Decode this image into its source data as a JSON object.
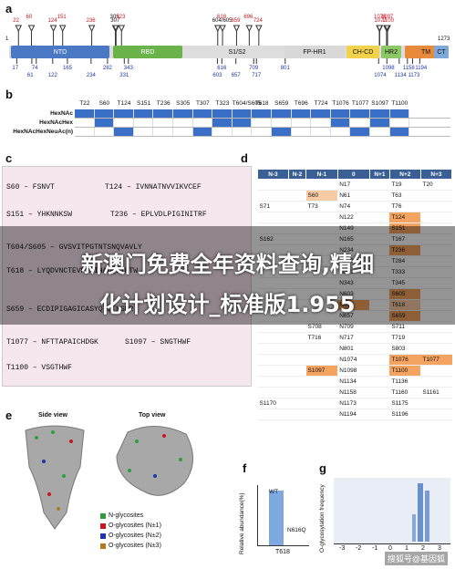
{
  "panels": {
    "a": "a",
    "b": "b",
    "c": "c",
    "d": "d",
    "e": "e",
    "f": "f",
    "g": "g"
  },
  "panel_a": {
    "domains": [
      {
        "name": "NTD",
        "color": "#4a78c4"
      },
      {
        "name": "RBD",
        "color": "#6ab24a"
      },
      {
        "name": "S1/S2",
        "color": "#ffffff"
      },
      {
        "name": "FP-HR1",
        "color": "#d8d8d8"
      },
      {
        "name": "CH-CD",
        "color": "#f2d24a"
      },
      {
        "name": "HR2",
        "color": "#8cc866"
      },
      {
        "name": "TM",
        "color": "#e88a3c"
      },
      {
        "name": "CT",
        "color": "#7da9d8"
      }
    ],
    "start_label": "1",
    "end_label": "1273",
    "top_sites": [
      "22",
      "60",
      "124",
      "151",
      "236",
      "305",
      "307",
      "323",
      "604/605",
      "618",
      "659",
      "696",
      "724",
      "1076",
      "1077",
      "1097",
      "1100"
    ],
    "bottom_sites": [
      "17",
      "61",
      "74",
      "122",
      "165",
      "234",
      "282",
      "331",
      "343",
      "603",
      "616",
      "657",
      "709",
      "717",
      "801",
      "1074",
      "1098",
      "1134",
      "1158",
      "1173",
      "1194"
    ]
  },
  "panel_b": {
    "columns": [
      "T22",
      "S60",
      "T124",
      "S151",
      "T236",
      "S305",
      "T307",
      "T323",
      "T604/S605",
      "T618",
      "S659",
      "T696",
      "T724",
      "T1076",
      "T1077",
      "S1097",
      "T1100"
    ],
    "rows": [
      {
        "label": "HexNAc",
        "cells": [
          1,
          1,
          1,
          1,
          1,
          1,
          1,
          1,
          1,
          1,
          1,
          1,
          1,
          1,
          1,
          1,
          1
        ]
      },
      {
        "label": "HexNAcHex",
        "cells": [
          0,
          1,
          0,
          0,
          0,
          0,
          0,
          1,
          1,
          0,
          0,
          0,
          0,
          1,
          0,
          1,
          0
        ]
      },
      {
        "label": "HexNAcHexNeuAc(n)",
        "cells": [
          0,
          0,
          1,
          0,
          0,
          0,
          1,
          0,
          0,
          0,
          1,
          0,
          0,
          0,
          1,
          0,
          1
        ]
      }
    ]
  },
  "panel_c": {
    "peptides": [
      {
        "text": "S60 – FSNVT"
      },
      {
        "text": "T124 – IVNNATNVVIKVCEF"
      },
      {
        "text": "S151 – YHKNNKSW"
      },
      {
        "text": "T236 – EPLVDLPIGINITRF"
      },
      {
        "text": "T604/S605 – GVSVITPGTNTSNQVAVLY"
      },
      {
        "text": "T618 – LYQDVNCTEVPVAIHADQLTPTW"
      },
      {
        "text": "S659 – ECDIPIGAGICASYQTQTNSPR"
      },
      {
        "text": "T1077 – NFTTAPAICHDGK"
      },
      {
        "text": "S1097 – SNGTHWF"
      },
      {
        "text": "T1100 – VSGTHWF"
      }
    ]
  },
  "panel_d": {
    "headers": [
      "N-3",
      "N-2",
      "N-1",
      "0",
      "N+1",
      "N+2",
      "N+3"
    ],
    "rows": [
      [
        "",
        "",
        "",
        "N17",
        "",
        "T19",
        "T20"
      ],
      [
        "",
        "",
        "S60",
        "N61",
        "",
        "T63",
        ""
      ],
      [
        "S71",
        "",
        "T73",
        "N74",
        "",
        "T76",
        ""
      ],
      [
        "",
        "",
        "",
        "N122",
        "",
        "T124",
        ""
      ],
      [
        "",
        "",
        "",
        "N149",
        "",
        "S151",
        ""
      ],
      [
        "S162",
        "",
        "",
        "N165",
        "",
        "T167",
        ""
      ],
      [
        "",
        "",
        "",
        "N234",
        "",
        "T236",
        ""
      ],
      [
        "",
        "",
        "",
        "N282",
        "",
        "T284",
        ""
      ],
      [
        "",
        "",
        "",
        "N331",
        "",
        "T333",
        ""
      ],
      [
        "",
        "",
        "",
        "N343",
        "",
        "T345",
        ""
      ],
      [
        "",
        "",
        "",
        "N603",
        "",
        "S605",
        ""
      ],
      [
        "",
        "",
        "",
        "N616",
        "",
        "T618",
        ""
      ],
      [
        "",
        "",
        "",
        "N657",
        "",
        "S659",
        ""
      ],
      [
        "",
        "",
        "S708",
        "N709",
        "",
        "S711",
        ""
      ],
      [
        "",
        "",
        "T716",
        "N717",
        "",
        "T719",
        ""
      ],
      [
        "",
        "",
        "",
        "N801",
        "",
        "S803",
        ""
      ],
      [
        "",
        "",
        "",
        "N1074",
        "",
        "T1076",
        "T1077"
      ],
      [
        "",
        "",
        "S1097",
        "N1098",
        "",
        "T1100",
        ""
      ],
      [
        "",
        "",
        "",
        "N1134",
        "",
        "T1136",
        ""
      ],
      [
        "",
        "",
        "",
        "N1158",
        "",
        "T1160",
        "S1161"
      ],
      [
        "S1170",
        "",
        "",
        "N1173",
        "",
        "S1175",
        ""
      ],
      [
        "",
        "",
        "",
        "N1194",
        "",
        "S1196",
        ""
      ]
    ]
  },
  "panel_e": {
    "side_view": "Side view",
    "top_view": "Top view",
    "legend": [
      {
        "label": "N-glycosites",
        "color": "#2e9e3e"
      },
      {
        "label": "O-glycosites (N±1)",
        "color": "#c8161e"
      },
      {
        "label": "O-glycosites (N±2)",
        "color": "#1c36a8"
      },
      {
        "label": "O-glycosites (N±3)",
        "color": "#b37a1f"
      }
    ]
  },
  "panel_f": {
    "ylabel": "Relative abundance(%)",
    "xlabel": "T618",
    "bars": [
      {
        "label": "WT",
        "value": 100
      },
      {
        "label": "N616Q",
        "value": 0
      }
    ]
  },
  "panel_g": {
    "ylabel": "O-glycosylation frequency",
    "ticks": [
      "-3",
      "-2",
      "-1",
      "0",
      "1",
      "2",
      "3"
    ],
    "mini_labels": [
      "ST",
      "ST",
      "ST",
      "N",
      "ST",
      "ST",
      "ST"
    ]
  },
  "overlay": {
    "line1": "新澳门免费全年资料查询,精细",
    "line2": "化计划设计_标准版1.955"
  },
  "watermark": "搜狐号@基因狐",
  "colors": {
    "grid_fill": "#3a6fc8",
    "orange": "#f4a460",
    "header": "#3a5f95"
  }
}
